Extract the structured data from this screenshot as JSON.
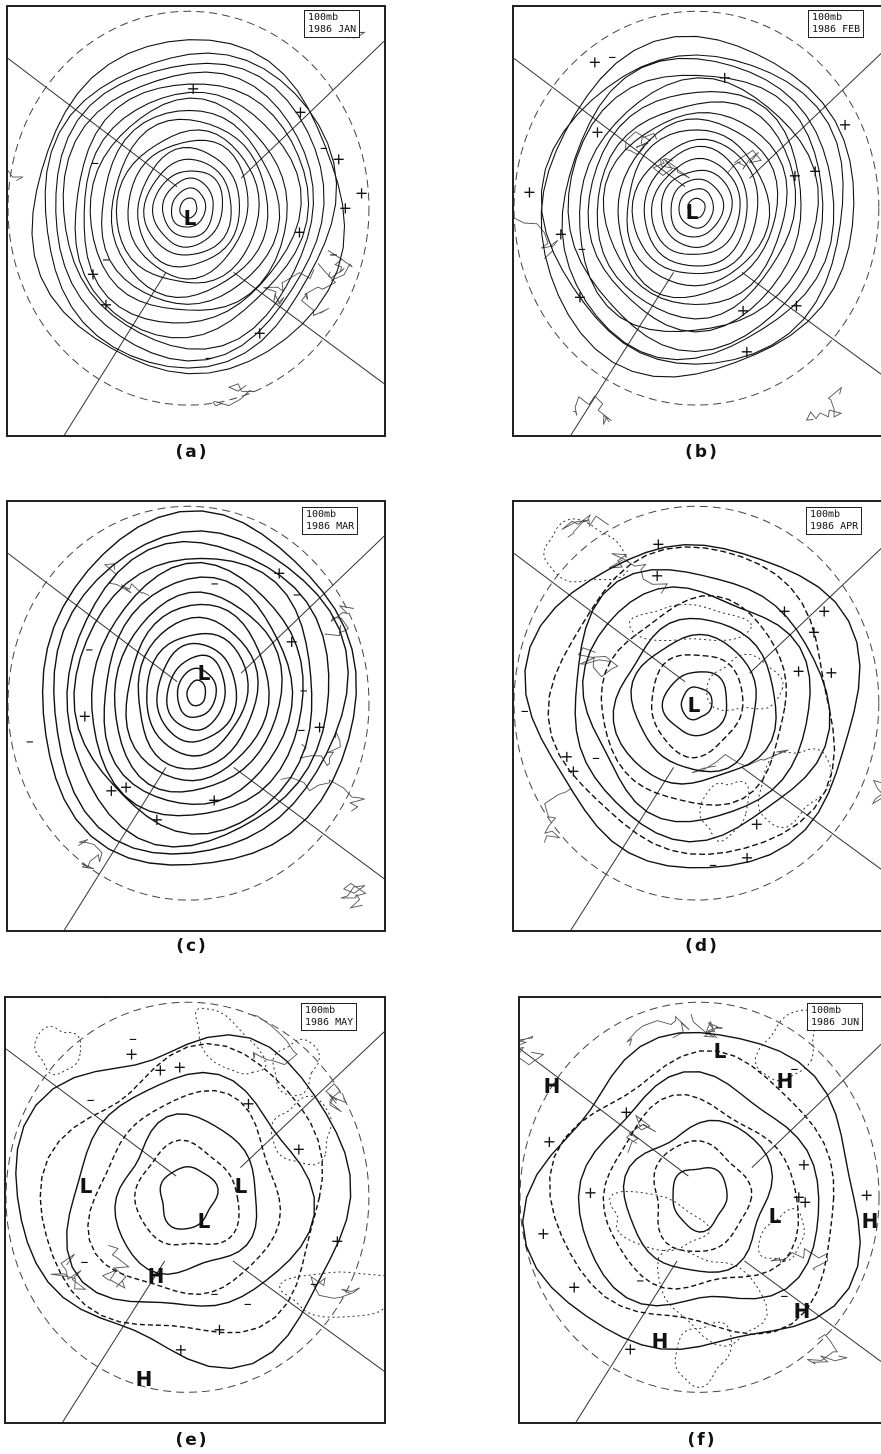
{
  "panels": [
    {
      "id": "a",
      "caption": "(a)",
      "stamp_level": "100mb",
      "stamp_date": "1986 JAN",
      "centers": [
        "L"
      ],
      "mode": "dense"
    },
    {
      "id": "b",
      "caption": "(b)",
      "stamp_level": "100mb",
      "stamp_date": "1986 FEB",
      "centers": [
        "L"
      ],
      "mode": "dense"
    },
    {
      "id": "c",
      "caption": "(c)",
      "stamp_level": "100mb",
      "stamp_date": "1986 MAR",
      "centers": [
        "L"
      ],
      "mode": "oval"
    },
    {
      "id": "d",
      "caption": "(d)",
      "stamp_level": "100mb",
      "stamp_date": "1986 APR",
      "centers": [
        "L"
      ],
      "mode": "medium"
    },
    {
      "id": "e",
      "caption": "(e)",
      "stamp_level": "100mb",
      "stamp_date": "1986 MAY",
      "centers": [
        "L",
        "L",
        "L",
        "H",
        "H"
      ],
      "mode": "sparse"
    },
    {
      "id": "f",
      "caption": "(f)",
      "stamp_level": "100mb",
      "stamp_date": "1986 JUN",
      "centers": [
        "H",
        "H",
        "L",
        "L",
        "H",
        "H",
        "H"
      ],
      "mode": "sparse"
    }
  ]
}
